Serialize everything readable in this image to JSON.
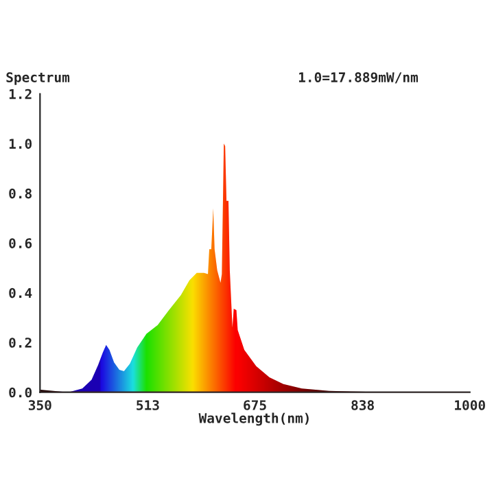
{
  "chart_data": {
    "type": "area",
    "ylabel": "Spectrum",
    "xlabel": "Wavelength(nm)",
    "annotations": [
      "1.0=17.889mW/nm"
    ],
    "x": [
      350,
      393,
      414,
      428,
      438,
      445,
      450,
      455,
      462,
      470,
      477,
      486,
      497,
      511,
      528,
      545,
      563,
      576,
      587,
      598,
      604,
      606,
      609,
      612,
      614,
      618,
      623,
      625,
      628,
      630,
      632,
      635,
      637,
      641,
      643,
      647,
      649,
      659,
      677,
      697,
      718,
      746,
      787,
      843,
      1000
    ],
    "series": [
      {
        "color": "#e00000",
        "values": [
          0.01,
          0.0,
          0.015,
          0.05,
          0.11,
          0.16,
          0.19,
          0.17,
          0.12,
          0.09,
          0.085,
          0.115,
          0.18,
          0.235,
          0.27,
          0.33,
          0.39,
          0.45,
          0.48,
          0.48,
          0.475,
          0.575,
          0.575,
          0.74,
          0.575,
          0.49,
          0.44,
          0.475,
          1.0,
          0.99,
          0.77,
          0.77,
          0.49,
          0.26,
          0.336,
          0.33,
          0.25,
          0.17,
          0.105,
          0.06,
          0.033,
          0.015,
          0.005,
          0.002,
          0.002
        ]
      }
    ],
    "xlim": [
      350,
      1000
    ],
    "xticks": [
      350,
      513,
      675,
      838,
      1000
    ],
    "ylim": [
      0,
      1.2
    ],
    "yticks": [
      {
        "value": 0,
        "label": "0.0"
      },
      0.2,
      0.4,
      0.6,
      0.8,
      {
        "value": 1,
        "label": "1.0"
      },
      1.2
    ],
    "grid": false,
    "legend": false
  }
}
